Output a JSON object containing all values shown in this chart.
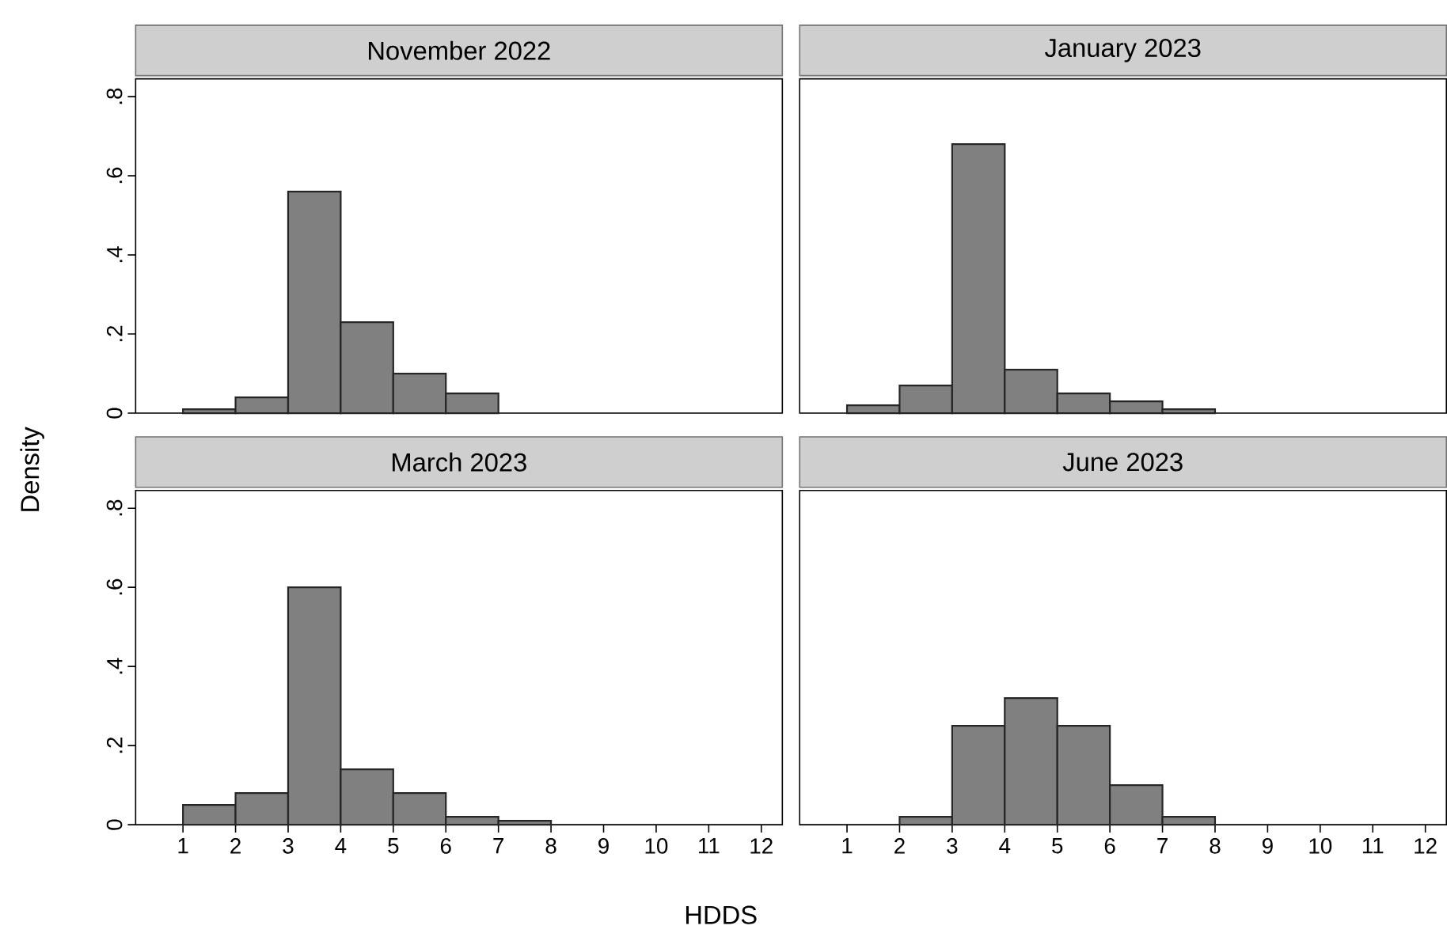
{
  "chart_data": [
    {
      "type": "histogram",
      "title": "November 2022",
      "ylabel": "Density",
      "bins": [
        1,
        2,
        3,
        4,
        5,
        6,
        7
      ],
      "values": [
        0.01,
        0.04,
        0.56,
        0.23,
        0.1,
        0.05
      ],
      "color": "#808080",
      "xlim": [
        0.1,
        12.4
      ],
      "ylim": [
        0,
        0.845
      ],
      "yticks": [
        {
          "value": 0,
          "label": "0"
        },
        {
          "value": 0.2,
          "label": ".2"
        },
        {
          "value": 0.4,
          "label": ".4"
        },
        {
          "value": 0.6,
          "label": ".6"
        },
        {
          "value": 0.8,
          "label": ".8"
        }
      ],
      "tick_labels": "y"
    },
    {
      "type": "histogram",
      "title": "January 2023",
      "bins": [
        1,
        2,
        3,
        4,
        5,
        6,
        7,
        8
      ],
      "values": [
        0.02,
        0.07,
        0.68,
        0.11,
        0.05,
        0.03,
        0.01
      ],
      "color": "#808080",
      "xlim": [
        0.1,
        12.4
      ],
      "ylim": [
        0,
        0.845
      ],
      "tick_labels": false
    },
    {
      "type": "histogram",
      "title": "March 2023",
      "xlabel": "HDDS",
      "bins": [
        1,
        2,
        3,
        4,
        5,
        6,
        7,
        8
      ],
      "values": [
        0.05,
        0.08,
        0.6,
        0.14,
        0.08,
        0.02,
        0.01
      ],
      "color": "#808080",
      "xlim": [
        0.1,
        12.4
      ],
      "ylim": [
        0,
        0.845
      ],
      "xticks": [
        1,
        2,
        3,
        4,
        5,
        6,
        7,
        8,
        9,
        10,
        11,
        12
      ],
      "yticks": [
        {
          "value": 0,
          "label": "0"
        },
        {
          "value": 0.2,
          "label": ".2"
        },
        {
          "value": 0.4,
          "label": ".4"
        },
        {
          "value": 0.6,
          "label": ".6"
        },
        {
          "value": 0.8,
          "label": ".8"
        }
      ]
    },
    {
      "type": "histogram",
      "title": "June 2023",
      "bins": [
        2,
        3,
        4,
        5,
        6,
        7,
        8
      ],
      "values": [
        0.02,
        0.25,
        0.32,
        0.25,
        0.1,
        0.02
      ],
      "color": "#808080",
      "xlim": [
        0.1,
        12.4
      ],
      "ylim": [
        0,
        0.845
      ],
      "xticks": [
        1,
        2,
        3,
        4,
        5,
        6,
        7,
        8,
        9,
        10,
        11,
        12
      ],
      "tick_labels": "x"
    }
  ]
}
